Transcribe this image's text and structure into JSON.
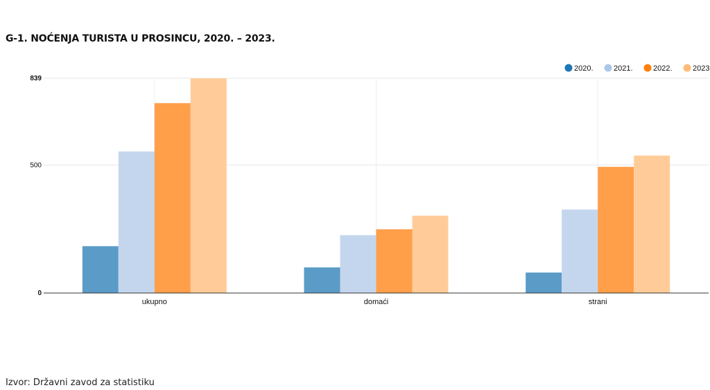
{
  "title": "G-1. NOĆENJA TURISTA U PROSINCU, 2020. – 2023.",
  "source": "Izvor: Državni zavod za statistiku",
  "chart_data": {
    "type": "bar",
    "categories": [
      "ukupno",
      "domaći",
      "strani"
    ],
    "series": [
      {
        "name": "2020.",
        "color": "#5b9bc8",
        "legend_color": "#1f77b4",
        "values": [
          183,
          100,
          80
        ]
      },
      {
        "name": "2021.",
        "color": "#c4d6ee",
        "legend_color": "#aec7e8",
        "values": [
          553,
          226,
          326
        ]
      },
      {
        "name": "2022.",
        "color": "#ff9f4a",
        "legend_color": "#ff7f0e",
        "values": [
          742,
          249,
          493
        ]
      },
      {
        "name": "2023",
        "color": "#ffcc99",
        "legend_color": "#ffbb78",
        "values": [
          839,
          302,
          537
        ]
      }
    ],
    "ylim": [
      0,
      839
    ],
    "yticks": [
      {
        "value": 0,
        "label": "0",
        "bold": true
      },
      {
        "value": 500,
        "label": "500",
        "bold": false
      },
      {
        "value": 839,
        "label": "839",
        "bold": true
      }
    ],
    "grid": true,
    "legend_position": "top-right"
  }
}
